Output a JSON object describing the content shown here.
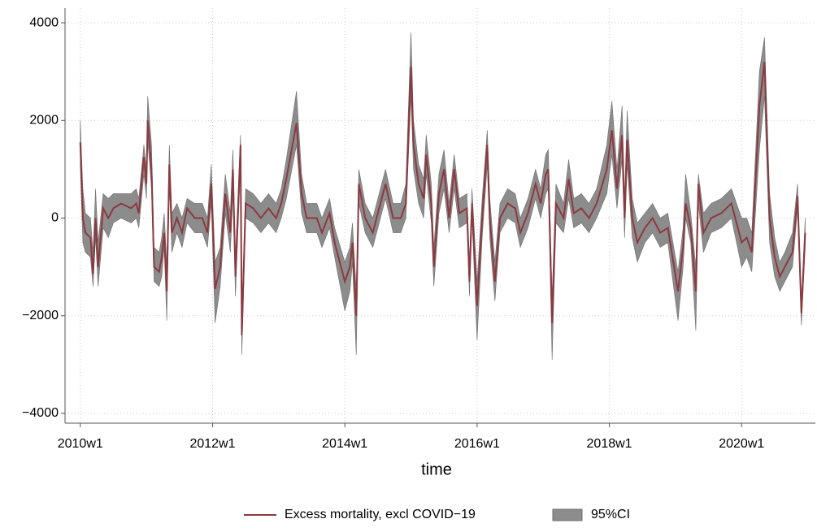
{
  "chart_data": {
    "type": "line",
    "x_label": "time",
    "x": [
      2600,
      2602,
      2604,
      2608,
      2610,
      2612,
      2614,
      2618,
      2622,
      2626,
      2632,
      2640,
      2644,
      2646,
      2650,
      2652,
      2653,
      2656,
      2658,
      2662,
      2664,
      2666,
      2668,
      2670,
      2672,
      2676,
      2680,
      2684,
      2690,
      2696,
      2700,
      2703,
      2706,
      2710,
      2714,
      2718,
      2720,
      2722,
      2726,
      2727,
      2730,
      2736,
      2742,
      2748,
      2754,
      2758,
      2762,
      2770,
      2774,
      2778,
      2786,
      2790,
      2796,
      2800,
      2808,
      2812,
      2814,
      2817,
      2819,
      2824,
      2830,
      2836,
      2840,
      2846,
      2852,
      2856,
      2860,
      2862,
      2866,
      2870,
      2872,
      2876,
      2878,
      2882,
      2886,
      2890,
      2894,
      2898,
      2904,
      2906,
      2908,
      2912,
      2916,
      2920,
      2922,
      2926,
      2930,
      2936,
      2942,
      2946,
      2952,
      2958,
      2962,
      2966,
      2968,
      2971,
      2974,
      2980,
      2984,
      2988,
      2994,
      3000,
      3006,
      3014,
      3018,
      3022,
      3026,
      3028,
      3030,
      3034,
      3038,
      3044,
      3050,
      3056,
      3062,
      3070,
      3074,
      3076,
      3080,
      3084,
      3086,
      3090,
      3096,
      3104,
      3112,
      3120,
      3124,
      3128,
      3134,
      3138,
      3142,
      3146,
      3150,
      3154,
      3160,
      3164,
      3167,
      3170
    ],
    "series": [
      {
        "name": "Excess mortality, excl COVID−19",
        "color": "#8b3a40",
        "values": [
          1550,
          0,
          -300,
          -400,
          -1150,
          0,
          -1000,
          200,
          0,
          200,
          300,
          200,
          300,
          100,
          1250,
          700,
          2000,
          1000,
          -1000,
          -1100,
          -800,
          -300,
          -1500,
          1100,
          -300,
          0,
          -300,
          200,
          0,
          0,
          -300,
          700,
          -1450,
          -1000,
          500,
          -300,
          1000,
          -1200,
          1500,
          -2400,
          300,
          200,
          0,
          200,
          0,
          300,
          800,
          1950,
          500,
          0,
          0,
          -300,
          100,
          -500,
          -1300,
          -1000,
          -500,
          -2000,
          700,
          0,
          -300,
          300,
          700,
          0,
          0,
          300,
          3100,
          1500,
          700,
          400,
          1300,
          300,
          -1000,
          500,
          1000,
          0,
          1000,
          100,
          200,
          -1300,
          300,
          -1800,
          0,
          1500,
          0,
          -1300,
          0,
          300,
          200,
          -300,
          100,
          700,
          300,
          900,
          1000,
          -2150,
          300,
          0,
          800,
          100,
          200,
          0,
          300,
          1000,
          1800,
          600,
          1700,
          0,
          1600,
          0,
          -500,
          -200,
          0,
          -300,
          -200,
          -1500,
          -600,
          300,
          -200,
          -1500,
          700,
          -300,
          0,
          100,
          300,
          -500,
          -400,
          -700,
          2300,
          3200,
          0,
          -800,
          -1200,
          -1000,
          -700,
          450,
          -1950,
          -300
        ]
      },
      {
        "name": "95%CI",
        "color": "#8c8c8c",
        "lower": [
          1100,
          -500,
          -700,
          -800,
          -1400,
          -400,
          -1400,
          -200,
          -400,
          -100,
          0,
          -100,
          0,
          -200,
          900,
          400,
          1600,
          600,
          -1300,
          -1400,
          -1200,
          -600,
          -2100,
          700,
          -700,
          -300,
          -600,
          -100,
          -300,
          -300,
          -600,
          300,
          -2150,
          -1400,
          100,
          -700,
          500,
          -1600,
          1100,
          -2800,
          0,
          -100,
          -300,
          -100,
          -300,
          0,
          400,
          1500,
          100,
          -300,
          -300,
          -600,
          -200,
          -800,
          -1900,
          -1500,
          -900,
          -2800,
          300,
          -300,
          -600,
          0,
          400,
          -300,
          -300,
          0,
          2500,
          1000,
          300,
          0,
          900,
          -100,
          -1400,
          100,
          600,
          -300,
          600,
          -200,
          -100,
          -1600,
          0,
          -2500,
          -400,
          1100,
          -400,
          -1700,
          -300,
          0,
          -100,
          -600,
          -200,
          400,
          0,
          500,
          600,
          -2900,
          -100,
          -300,
          400,
          -200,
          -100,
          -300,
          0,
          500,
          1300,
          200,
          1200,
          -400,
          1100,
          -400,
          -900,
          -500,
          -300,
          -600,
          -500,
          -2100,
          -1000,
          0,
          -500,
          -2300,
          300,
          -700,
          -300,
          -200,
          0,
          -1000,
          -800,
          -1100,
          1400,
          2500,
          -500,
          -1200,
          -1500,
          -1300,
          -1000,
          200,
          -2200,
          -600
        ],
        "upper": [
          2000,
          600,
          100,
          0,
          -700,
          600,
          -500,
          500,
          400,
          500,
          500,
          500,
          600,
          400,
          1500,
          1000,
          2500,
          1500,
          -600,
          -700,
          -400,
          100,
          -1000,
          1500,
          100,
          300,
          0,
          400,
          300,
          300,
          0,
          1100,
          -900,
          -600,
          900,
          100,
          1400,
          -800,
          1700,
          -2000,
          600,
          500,
          300,
          500,
          300,
          600,
          1200,
          2600,
          900,
          300,
          300,
          0,
          400,
          -200,
          -900,
          -600,
          -100,
          -1500,
          1000,
          300,
          0,
          600,
          1000,
          300,
          300,
          700,
          3800,
          2000,
          1100,
          800,
          1700,
          700,
          -600,
          900,
          1400,
          300,
          1300,
          400,
          500,
          -900,
          600,
          -1300,
          400,
          1800,
          400,
          -900,
          300,
          600,
          500,
          0,
          400,
          1000,
          600,
          1300,
          1400,
          -1600,
          700,
          300,
          1200,
          400,
          500,
          300,
          600,
          1500,
          2400,
          1000,
          2300,
          400,
          2200,
          400,
          -100,
          100,
          300,
          0,
          100,
          -1100,
          -200,
          900,
          100,
          -1000,
          900,
          100,
          300,
          400,
          600,
          0,
          0,
          -300,
          3000,
          3700,
          500,
          -400,
          -900,
          -700,
          -300,
          700,
          -1700,
          0
        ]
      }
    ],
    "xlim": [
      2588,
      3178
    ],
    "ylim": [
      -4200,
      4300
    ],
    "xticks": [
      {
        "value": 2600,
        "label": "2010w1"
      },
      {
        "value": 2704,
        "label": "2012w1"
      },
      {
        "value": 2808,
        "label": "2014w1"
      },
      {
        "value": 2912,
        "label": "2016w1"
      },
      {
        "value": 3016,
        "label": "2018w1"
      },
      {
        "value": 3120,
        "label": "2020w1"
      }
    ],
    "yticks": [
      {
        "value": -4000,
        "label": "−4000"
      },
      {
        "value": -2000,
        "label": "−2000"
      },
      0,
      2000,
      4000
    ],
    "grid": true
  }
}
